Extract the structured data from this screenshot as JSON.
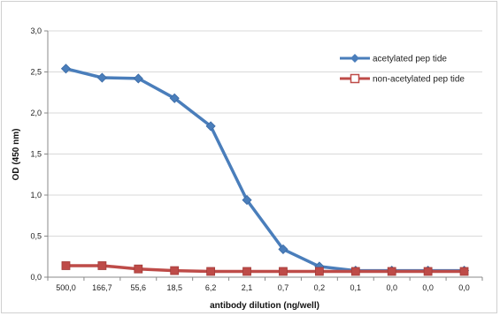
{
  "chart_data": {
    "type": "line",
    "title": "",
    "xlabel": "antibody dilution (ng/well)",
    "ylabel": "OD (450 nm)",
    "categories": [
      "500,0",
      "166,7",
      "55,6",
      "18,5",
      "6,2",
      "2,1",
      "0,7",
      "0,2",
      "0,1",
      "0,0",
      "0,0",
      "0,0"
    ],
    "ylim": [
      0,
      3.0
    ],
    "yticks": [
      0,
      0.5,
      1.0,
      1.5,
      2.0,
      2.5,
      3.0
    ],
    "ytick_labels": [
      "0,0",
      "0,5",
      "1,0",
      "1,5",
      "2,0",
      "2,5",
      "3,0"
    ],
    "grid": true,
    "legend_position": "top-right",
    "series": [
      {
        "name": "acetylated pep tide",
        "color": "#4a7ebb",
        "marker": "diamond",
        "values": [
          2.54,
          2.43,
          2.42,
          2.18,
          1.84,
          0.94,
          0.34,
          0.13,
          0.08,
          0.08,
          0.08,
          0.08
        ]
      },
      {
        "name": "non-acetylated pep tide",
        "color": "#be4b48",
        "marker": "square",
        "values": [
          0.14,
          0.14,
          0.1,
          0.08,
          0.07,
          0.07,
          0.07,
          0.07,
          0.07,
          0.07,
          0.07,
          0.07
        ]
      }
    ]
  }
}
